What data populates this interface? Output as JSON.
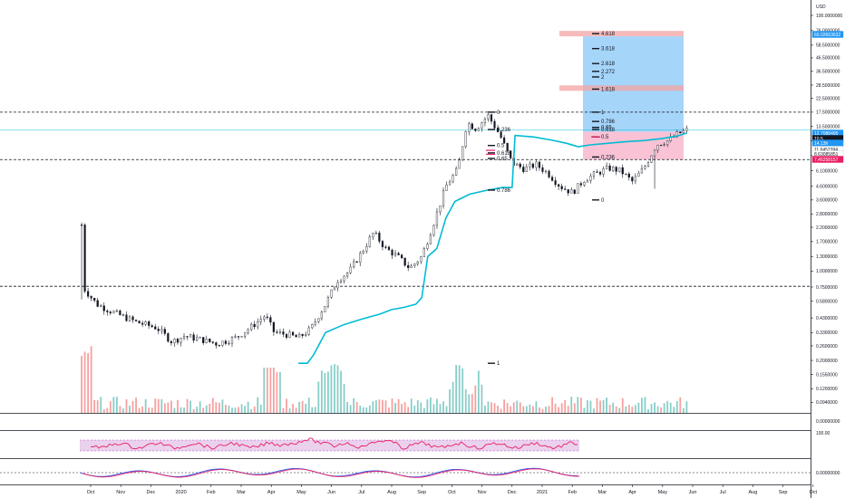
{
  "chart": {
    "currency": "USD",
    "price_scale": {
      "type": "log",
      "min": 0.09,
      "max": 100,
      "ticks": [
        "100.0000000",
        "76.0000000",
        "58.5000000",
        "46.5000000",
        "36.5000000",
        "28.5000000",
        "22.5000000",
        "17.5000000",
        "13.5000000",
        "10.5000000",
        "8.0000000",
        "6.1000000",
        "4.6000000",
        "3.6000000",
        "2.8000000",
        "2.2000000",
        "1.7000000",
        "1.3000000",
        "1.0000000",
        "0.7500000",
        "0.5800000",
        "0.4300000",
        "0.3300000",
        "0.2600000",
        "0.2000000",
        "0.1550000",
        "0.1200000",
        "0.0940000"
      ]
    },
    "badges": [
      {
        "text": "69.02663632",
        "color": "#2196f3"
      },
      {
        "text": "12.7088495",
        "color": "#2196f3"
      },
      {
        "text": "10.5",
        "color": "#131722"
      },
      {
        "text": "14.13h",
        "color": "#2196f3"
      },
      {
        "text": "11.6452394",
        "color": "#ffffff"
      },
      {
        "text": "8.63085851",
        "color": "#ffffff"
      },
      {
        "text": "7.45258157",
        "color": "#e91e63"
      }
    ],
    "time_axis": [
      "Oct",
      "Nov",
      "Dec",
      "2020",
      "Feb",
      "Mar",
      "Apr",
      "May",
      "Jun",
      "Jul",
      "Aug",
      "Sep",
      "Oct",
      "Nov",
      "Dec",
      "2021",
      "Feb",
      "Mar",
      "Apr",
      "May",
      "Jun",
      "Jul",
      "Aug",
      "Sep",
      "Oct"
    ],
    "fib_left": [
      {
        "label": "0",
        "value": 17.5
      },
      {
        "label": "0.236",
        "value": 12.8
      },
      {
        "label": "0.5",
        "value": 9.6
      },
      {
        "label": "0.618",
        "value": 8.4
      },
      {
        "label": "0.65",
        "value": 7.6
      },
      {
        "label": "0.786",
        "value": 4.3
      },
      {
        "label": "1",
        "value": 0.19
      }
    ],
    "fib_right": [
      {
        "label": "4.618",
        "value": 72
      },
      {
        "label": "3.618",
        "value": 55
      },
      {
        "label": "2.618",
        "value": 42
      },
      {
        "label": "2.272",
        "value": 36.5
      },
      {
        "label": "2",
        "value": 33
      },
      {
        "label": "1.618",
        "value": 26.5
      },
      {
        "label": "1",
        "value": 17.5
      },
      {
        "label": "0.786",
        "value": 14.8
      },
      {
        "label": "0.65",
        "value": 13.3
      },
      {
        "label": "0.618",
        "value": 12.8
      },
      {
        "label": "0.5",
        "value": 11.2
      },
      {
        "label": "0.236",
        "value": 7.8
      },
      {
        "label": "0",
        "value": 3.6
      }
    ],
    "dashed_levels": [
      17.5,
      7.45,
      0.76
    ],
    "rsi_scale": "100.00",
    "volume_scale": "0.00000000",
    "macd_scale": "0.00000000",
    "colors": {
      "up": "#26a69a",
      "down": "#ef5350",
      "candle": "#131722",
      "vwap": "#00bcd4",
      "rsi": "#e91e63",
      "rsi_band": "#e1bee7",
      "target_zone": "#90caf9",
      "stop_zone": "#f8bbd0",
      "level_band": "#f4a3a3",
      "macd": "#2962ff",
      "signal": "#e91e63"
    }
  }
}
